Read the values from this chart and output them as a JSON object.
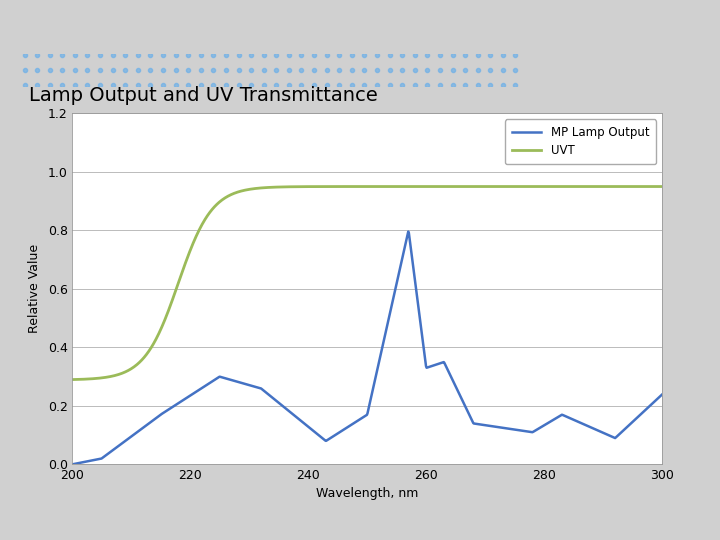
{
  "title": "Lamp Output and UV Transmittance",
  "xlabel": "Wavelength, nm",
  "ylabel": "Relative Value",
  "xlim": [
    200,
    300
  ],
  "ylim": [
    0.0,
    1.2
  ],
  "yticks": [
    0.0,
    0.2,
    0.4,
    0.6,
    0.8,
    1.0,
    1.2
  ],
  "xticks": [
    200,
    220,
    240,
    260,
    280,
    300
  ],
  "mp_color": "#4472C4",
  "uvt_color": "#9BBB59",
  "bg_color": "#FFFFFF",
  "slide_bg": "#E8E8E8",
  "header_bg": "#1F3864",
  "title_fontsize": 14,
  "axis_fontsize": 9,
  "tick_fontsize": 9,
  "legend_labels": [
    "MP Lamp Output",
    "UVT"
  ]
}
